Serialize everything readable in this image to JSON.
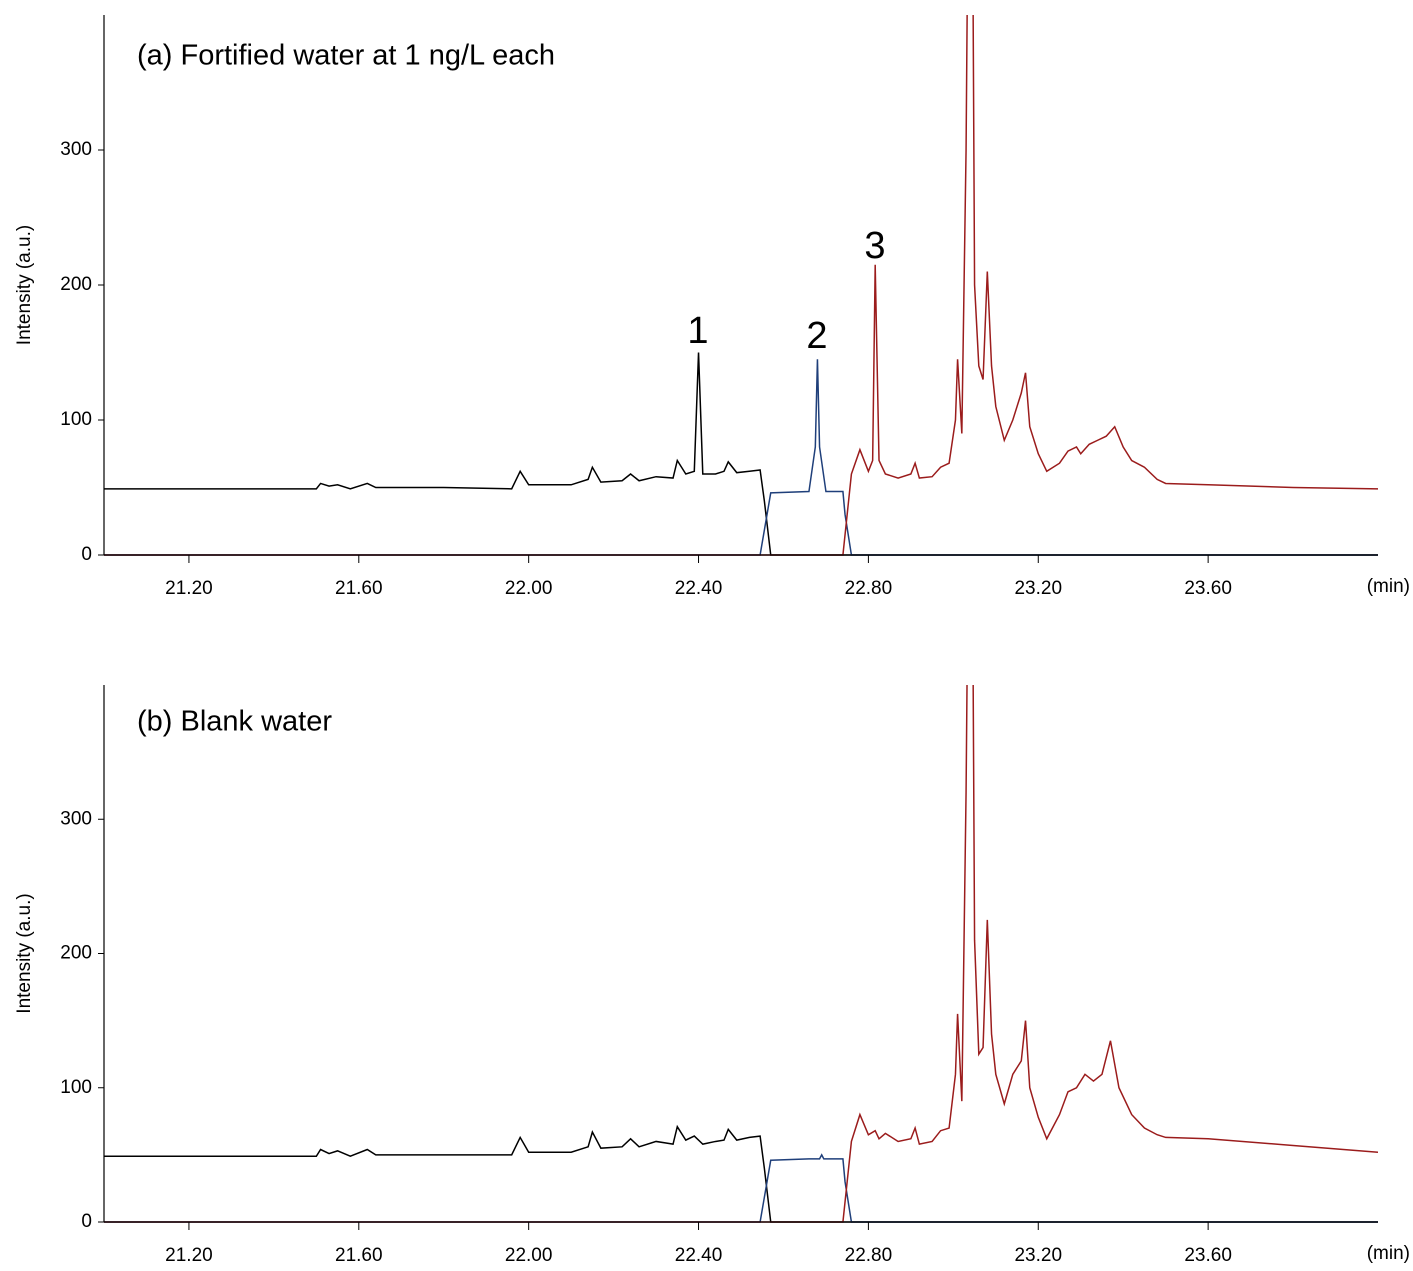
{
  "chart_data": [
    {
      "type": "line",
      "title": "(a) Fortified water at 1 ng/L each",
      "ylabel": "Intensity (a.u.)",
      "xunit": "(min)",
      "annotations": [
        "1",
        "2",
        "3"
      ],
      "xlim": [
        21.0,
        24.0
      ],
      "ylim": [
        0,
        400
      ],
      "xticks": [
        {
          "value": 21.2,
          "label": "21.20"
        },
        {
          "value": 21.6,
          "label": "21.60"
        },
        {
          "value": 22.0,
          "label": "22.00"
        },
        {
          "value": 22.4,
          "label": "22.40"
        },
        {
          "value": 22.8,
          "label": "22.80"
        },
        {
          "value": 23.2,
          "label": "23.20"
        },
        {
          "value": 23.6,
          "label": "23.60"
        }
      ],
      "yticks": [
        0,
        100,
        200,
        300
      ],
      "series": [
        {
          "color": "#000000",
          "x": [
            21.0,
            21.5,
            21.51,
            21.53,
            21.55,
            21.58,
            21.62,
            21.64,
            21.8,
            21.96,
            21.98,
            22.0,
            22.1,
            22.14,
            22.15,
            22.17,
            22.22,
            22.24,
            22.26,
            22.3,
            22.34,
            22.35,
            22.37,
            22.39,
            22.4,
            22.41,
            22.44,
            22.46,
            22.47,
            22.49,
            22.52,
            22.545,
            22.555,
            22.57,
            24.0
          ],
          "values": [
            49,
            49,
            53,
            51,
            52,
            49,
            53,
            50,
            50,
            49,
            62,
            52,
            52,
            56,
            65,
            54,
            55,
            60,
            55,
            58,
            57,
            70,
            60,
            62,
            150,
            60,
            60,
            62,
            69,
            61,
            62,
            63,
            40,
            0,
            0
          ]
        },
        {
          "color": "#1f3f7a",
          "x": [
            21.0,
            22.545,
            22.57,
            22.66,
            22.675,
            22.68,
            22.685,
            22.7,
            22.74,
            22.745,
            22.76,
            24.0
          ],
          "values": [
            0,
            0,
            46,
            47,
            80,
            145,
            80,
            47,
            47,
            30,
            0,
            0
          ]
        },
        {
          "color": "#9b1c1c",
          "x": [
            21.0,
            22.74,
            22.76,
            22.78,
            22.8,
            22.81,
            22.816,
            22.825,
            22.84,
            22.87,
            22.9,
            22.91,
            22.92,
            22.95,
            22.97,
            22.99,
            23.005,
            23.01,
            23.02,
            23.03,
            23.035,
            23.045,
            23.05,
            23.06,
            23.07,
            23.08,
            23.09,
            23.1,
            23.12,
            23.14,
            23.16,
            23.17,
            23.18,
            23.2,
            23.22,
            23.25,
            23.27,
            23.29,
            23.3,
            23.32,
            23.34,
            23.36,
            23.38,
            23.4,
            23.42,
            23.45,
            23.48,
            23.5,
            23.6,
            23.8,
            24.0
          ],
          "values": [
            0,
            0,
            60,
            78,
            62,
            70,
            215,
            70,
            60,
            57,
            60,
            68,
            57,
            58,
            65,
            68,
            100,
            145,
            90,
            300,
            500,
            500,
            200,
            140,
            130,
            210,
            140,
            110,
            85,
            100,
            120,
            135,
            95,
            75,
            62,
            68,
            77,
            80,
            75,
            82,
            85,
            88,
            95,
            80,
            70,
            65,
            56,
            53,
            52,
            50,
            49
          ]
        }
      ]
    },
    {
      "type": "line",
      "title": "(b) Blank water",
      "ylabel": "Intensity (a.u.)",
      "xunit": "(min)",
      "xlim": [
        21.0,
        24.0
      ],
      "ylim": [
        0,
        400
      ],
      "xticks": [
        {
          "value": 21.2,
          "label": "21.20"
        },
        {
          "value": 21.6,
          "label": "21.60"
        },
        {
          "value": 22.0,
          "label": "22.00"
        },
        {
          "value": 22.4,
          "label": "22.40"
        },
        {
          "value": 22.8,
          "label": "22.80"
        },
        {
          "value": 23.2,
          "label": "23.20"
        },
        {
          "value": 23.6,
          "label": "23.60"
        }
      ],
      "yticks": [
        0,
        100,
        200,
        300
      ],
      "series": [
        {
          "color": "#000000",
          "x": [
            21.0,
            21.5,
            21.51,
            21.53,
            21.55,
            21.58,
            21.62,
            21.64,
            21.8,
            21.96,
            21.98,
            22.0,
            22.1,
            22.14,
            22.15,
            22.17,
            22.22,
            22.24,
            22.26,
            22.3,
            22.34,
            22.35,
            22.37,
            22.39,
            22.41,
            22.44,
            22.46,
            22.47,
            22.49,
            22.52,
            22.545,
            22.555,
            22.57,
            24.0
          ],
          "values": [
            49,
            49,
            54,
            51,
            53,
            49,
            54,
            50,
            50,
            50,
            63,
            52,
            52,
            56,
            67,
            55,
            56,
            62,
            56,
            60,
            58,
            71,
            61,
            64,
            58,
            60,
            61,
            69,
            61,
            63,
            64,
            40,
            0,
            0
          ]
        },
        {
          "color": "#1f3f7a",
          "x": [
            21.0,
            22.545,
            22.57,
            22.66,
            22.685,
            22.69,
            22.695,
            22.74,
            22.745,
            22.76,
            24.0
          ],
          "values": [
            0,
            0,
            46,
            47,
            47,
            50,
            47,
            47,
            30,
            0,
            0
          ]
        },
        {
          "color": "#9b1c1c",
          "x": [
            21.0,
            22.74,
            22.76,
            22.78,
            22.8,
            22.816,
            22.825,
            22.84,
            22.87,
            22.9,
            22.91,
            22.92,
            22.95,
            22.97,
            22.99,
            23.005,
            23.01,
            23.02,
            23.03,
            23.035,
            23.045,
            23.05,
            23.06,
            23.07,
            23.08,
            23.09,
            23.1,
            23.12,
            23.14,
            23.16,
            23.17,
            23.18,
            23.2,
            23.22,
            23.25,
            23.27,
            23.29,
            23.31,
            23.33,
            23.35,
            23.37,
            23.39,
            23.42,
            23.45,
            23.48,
            23.5,
            23.6,
            23.8,
            24.0
          ],
          "values": [
            0,
            0,
            60,
            80,
            65,
            68,
            62,
            66,
            60,
            62,
            70,
            58,
            60,
            68,
            70,
            110,
            155,
            90,
            320,
            500,
            500,
            210,
            125,
            130,
            225,
            140,
            110,
            88,
            110,
            120,
            150,
            100,
            78,
            62,
            80,
            97,
            100,
            110,
            105,
            110,
            135,
            100,
            80,
            70,
            65,
            63,
            62,
            57,
            52
          ]
        }
      ]
    }
  ]
}
